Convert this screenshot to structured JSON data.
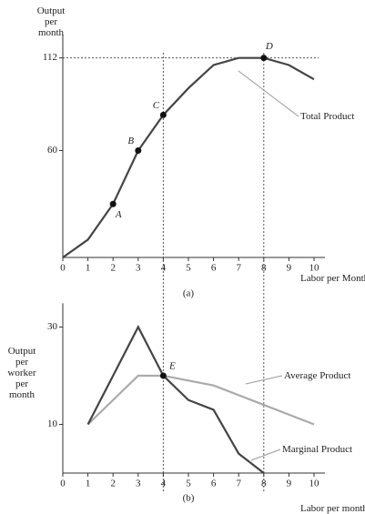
{
  "chart_data": [
    {
      "type": "line",
      "caption": "(a)",
      "y_label": "Output per month",
      "x_label": "Labor per Month",
      "x": [
        0,
        1,
        2,
        3,
        4,
        5,
        6,
        7,
        8,
        9,
        10
      ],
      "series": [
        {
          "name": "Total Product",
          "color": "#444444",
          "values": [
            0,
            10,
            30,
            60,
            80,
            95,
            108,
            112,
            112,
            108,
            100
          ]
        }
      ],
      "points": [
        {
          "label": "A",
          "x": 2,
          "y": 30
        },
        {
          "label": "B",
          "x": 3,
          "y": 60
        },
        {
          "label": "C",
          "x": 4,
          "y": 80
        },
        {
          "label": "D",
          "x": 8,
          "y": 112
        }
      ],
      "vlines": [
        4,
        8
      ],
      "hlines": [
        112
      ],
      "xlim": [
        0,
        10
      ],
      "xticks": [
        0,
        1,
        2,
        3,
        4,
        5,
        6,
        7,
        8,
        9,
        10
      ],
      "ylim": [
        0,
        120
      ],
      "yticks": [
        60,
        112
      ]
    },
    {
      "type": "line",
      "caption": "(b)",
      "y_label": "Output per worker per month",
      "x_label": "Labor per month",
      "x": [
        1,
        2,
        3,
        4,
        5,
        6,
        7,
        8,
        9,
        10
      ],
      "series": [
        {
          "name": "Average Product",
          "color": "#aaaaaa",
          "values": [
            10,
            15,
            20,
            20,
            19,
            18,
            16,
            14,
            12,
            10
          ]
        },
        {
          "name": "Marginal Product",
          "color": "#444444",
          "values": [
            10,
            20,
            30,
            20,
            15,
            13,
            4,
            0,
            null,
            null
          ]
        }
      ],
      "points": [
        {
          "label": "E",
          "x": 4,
          "y": 20
        }
      ],
      "xlim": [
        0,
        10
      ],
      "xticks": [
        0,
        1,
        2,
        3,
        4,
        5,
        6,
        7,
        8,
        9,
        10
      ],
      "ylim": [
        0,
        33
      ],
      "yticks": [
        10,
        30
      ]
    }
  ]
}
